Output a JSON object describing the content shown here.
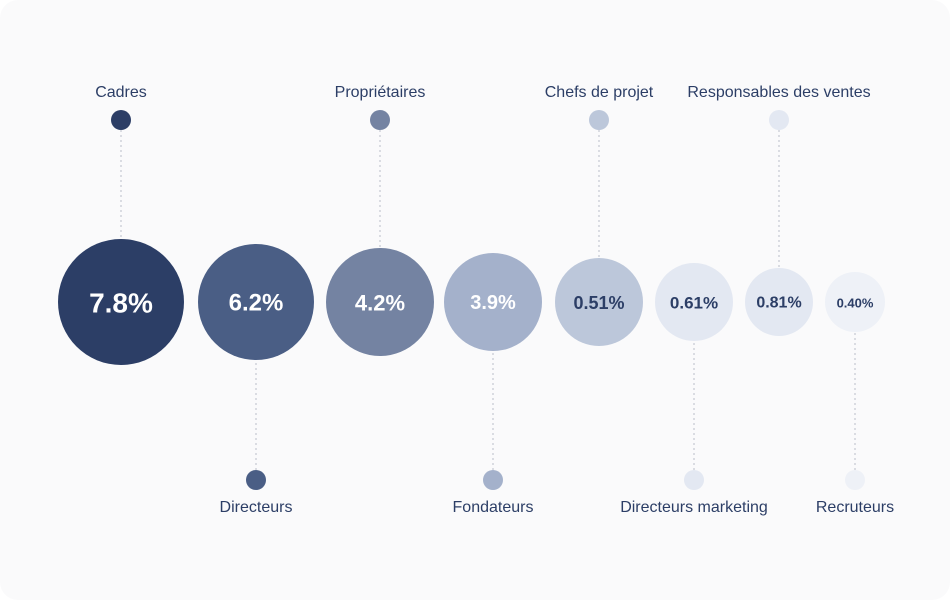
{
  "chart_data": {
    "type": "bubble",
    "title": "",
    "items": [
      {
        "category": "Cadres",
        "value": 7.8,
        "display": "7.8%",
        "label_side": "top",
        "color": "#2c3e66",
        "text_color": "#ffffff"
      },
      {
        "category": "Directeurs",
        "value": 6.2,
        "display": "6.2%",
        "label_side": "bottom",
        "color": "#4a5e85",
        "text_color": "#ffffff"
      },
      {
        "category": "Propriétaires",
        "value": 4.2,
        "display": "4.2%",
        "label_side": "top",
        "color": "#7483a2",
        "text_color": "#ffffff"
      },
      {
        "category": "Fondateurs",
        "value": 3.9,
        "display": "3.9%",
        "label_side": "bottom",
        "color": "#a4b1cb",
        "text_color": "#ffffff"
      },
      {
        "category": "Chefs de projet",
        "value": 0.51,
        "display": "0.51%",
        "label_side": "top",
        "color": "#bcc7da",
        "text_color": "#2c3e66"
      },
      {
        "category": "Directeurs marketing",
        "value": 0.61,
        "display": "0.61%",
        "label_side": "bottom",
        "color": "#e3e8f2",
        "text_color": "#2c3e66"
      },
      {
        "category": "Responsables des ventes",
        "value": 0.81,
        "display": "0.81%",
        "label_side": "top",
        "color": "#e3e8f2",
        "text_color": "#2c3e66"
      },
      {
        "category": "Recruteurs",
        "value": 0.4,
        "display": "0.40%",
        "label_side": "bottom",
        "color": "#eef1f7",
        "text_color": "#2c3e66"
      }
    ]
  }
}
